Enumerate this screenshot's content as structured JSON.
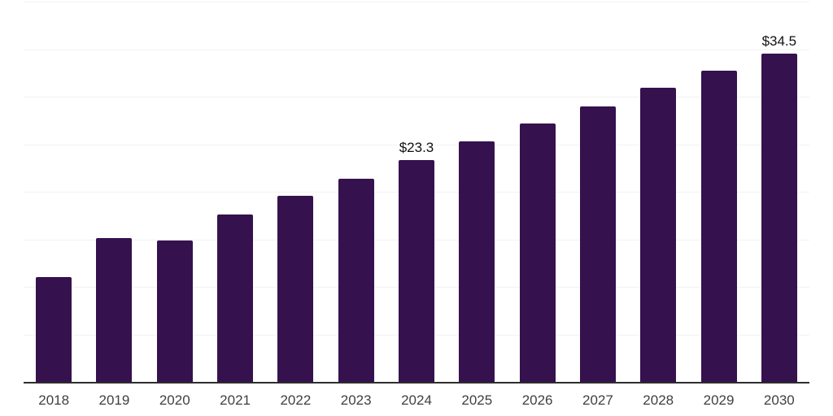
{
  "chart_data": {
    "type": "bar",
    "title": "",
    "xlabel": "",
    "ylabel": "",
    "categories": [
      "2018",
      "2019",
      "2020",
      "2021",
      "2022",
      "2023",
      "2024",
      "2025",
      "2026",
      "2027",
      "2028",
      "2029",
      "2030"
    ],
    "values": [
      11.0,
      15.1,
      14.9,
      17.6,
      19.6,
      21.4,
      23.3,
      25.3,
      27.2,
      29.0,
      30.9,
      32.7,
      34.5
    ],
    "data_labels": [
      {
        "category": "2024",
        "text": "$23.3"
      },
      {
        "category": "2030",
        "text": "$34.5"
      }
    ],
    "ylim": [
      0,
      40
    ],
    "gridline_step": 5,
    "grid": true,
    "legend_position": "none",
    "y_tick_labels_shown": false,
    "colors": {
      "bar": "#35114e",
      "gridline": "#f2f2f2",
      "axis_line": "#2d2d2d",
      "tick_label": "#404040",
      "data_label": "#111111",
      "background": "#ffffff"
    }
  }
}
